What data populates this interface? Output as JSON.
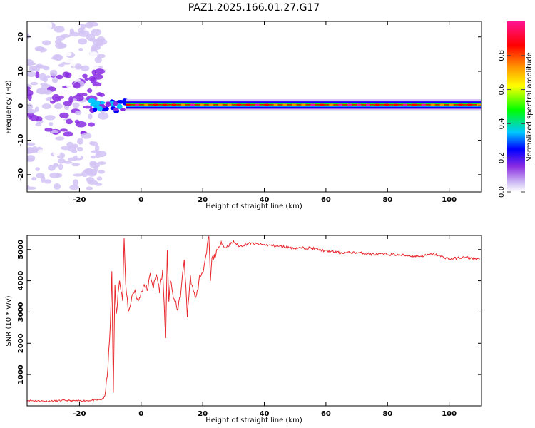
{
  "figure": {
    "title": "PAZ1.2025.166.01.27.G17"
  },
  "chart_data": [
    {
      "type": "heatmap",
      "title": "",
      "xlabel": "Height of straight line (km)",
      "ylabel": "Frequency (Hz)",
      "xlim": [
        -37,
        110.5
      ],
      "ylim": [
        -25,
        24.5
      ],
      "x_ticks": [
        -20,
        0,
        20,
        40,
        60,
        80,
        100
      ],
      "y_ticks": [
        -20,
        -10,
        0,
        10,
        20
      ],
      "colorbar": {
        "label": "Normalized spectral amplitude",
        "range": [
          0,
          1
        ],
        "ticks": [
          0.0,
          0.2,
          0.4,
          0.6,
          0.8
        ],
        "colormap": [
          "#ffffff",
          "#d2c3f5",
          "#8a2be2",
          "#0000ff",
          "#00c8ff",
          "#00ff00",
          "#ffff00",
          "#ff8c00",
          "#ff0000",
          "#ff1493"
        ]
      },
      "features": [
        {
          "x_range": [
            -37,
            -12
          ],
          "frequency_range": [
            -24,
            24
          ],
          "amplitude": 0.15,
          "description_source": "scattered noise"
        },
        {
          "x_range": [
            -16,
            -5
          ],
          "frequency_center": 0.0,
          "amplitude": 0.4
        },
        {
          "x_range": [
            -5,
            110.5
          ],
          "frequency_center": 0.3,
          "peak_amplitude": 1.0
        }
      ]
    },
    {
      "type": "line",
      "title": "",
      "xlabel": "Height of straight line (km)",
      "ylabel": "SNR (10 * v/v)",
      "xlim": [
        -37,
        110.5
      ],
      "ylim": [
        0,
        5450
      ],
      "x_ticks": [
        -20,
        0,
        20,
        40,
        60,
        80,
        100
      ],
      "y_ticks": [
        1000,
        2000,
        3000,
        4000,
        5000
      ],
      "color": "#e8262b",
      "series": [
        {
          "x": [
            -37,
            -30,
            -25,
            -20,
            -15,
            -12,
            -11,
            -10,
            -9.5,
            -9,
            -8.5,
            -8,
            -7,
            -6,
            -5.5,
            -5,
            -4,
            -3,
            -2,
            -1,
            0,
            1,
            2,
            3,
            4,
            5,
            6,
            7,
            8,
            8.5,
            9,
            9.5,
            10,
            11,
            12,
            13,
            14,
            15,
            16,
            17,
            18,
            19,
            20,
            21,
            22,
            22.5,
            23,
            24,
            25,
            26,
            27,
            28,
            30,
            32,
            35,
            40,
            45,
            50,
            55,
            60,
            65,
            70,
            75,
            80,
            85,
            90,
            95,
            100,
            105,
            110
          ],
          "y": [
            170,
            150,
            170,
            160,
            180,
            220,
            900,
            2500,
            4300,
            500,
            3800,
            2900,
            4100,
            3400,
            5400,
            3800,
            3000,
            3500,
            3700,
            3300,
            3600,
            3900,
            3700,
            4200,
            3800,
            4200,
            3700,
            4300,
            2100,
            4900,
            3400,
            4000,
            3700,
            3300,
            3100,
            3700,
            4700,
            2900,
            4100,
            3600,
            3500,
            4100,
            4300,
            4700,
            5450,
            4000,
            4700,
            4800,
            5000,
            5250,
            5050,
            5100,
            5250,
            5100,
            5200,
            5150,
            5100,
            5050,
            5050,
            4950,
            4900,
            4900,
            4850,
            4850,
            4820,
            4780,
            4850,
            4700,
            4750,
            4700
          ]
        }
      ]
    }
  ]
}
